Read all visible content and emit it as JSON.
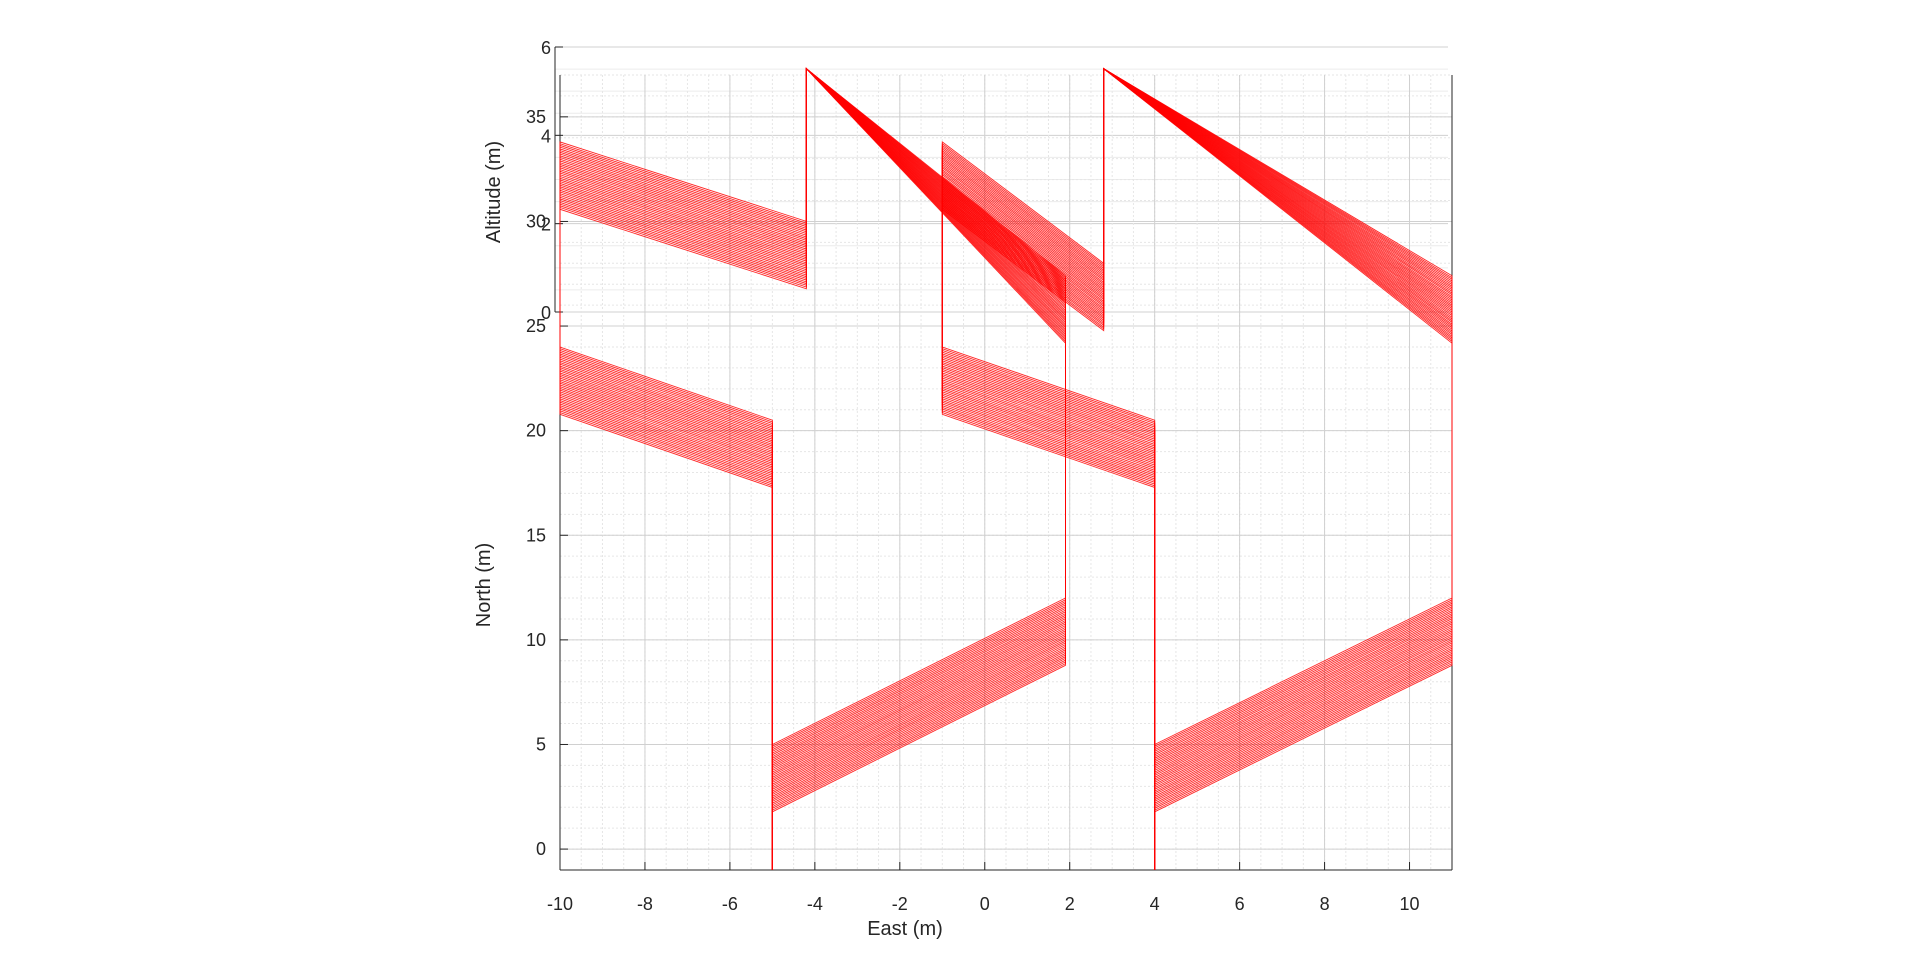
{
  "chart_data": {
    "type": "line",
    "projection": "3d",
    "title": "",
    "xlabel": "East (m)",
    "ylabel": "North (m)",
    "zlabel": "Altitude (m)",
    "xlim": [
      -10,
      11
    ],
    "ylim": [
      -1,
      37
    ],
    "zlim": [
      0,
      6
    ],
    "x_ticks": [
      "-10",
      "-8",
      "-6",
      "-4",
      "-2",
      "0",
      "2",
      "4",
      "6",
      "8",
      "10"
    ],
    "y_ticks": [
      "0",
      "5",
      "10",
      "15",
      "20",
      "25",
      "30",
      "35"
    ],
    "z_ticks": [
      "0",
      "2",
      "4",
      "6"
    ],
    "grid": true,
    "minor_grid": true,
    "legend": "none",
    "series_color": "#ff0000",
    "series": [
      {
        "sweeps": 40,
        "path": [
          [
            -5.0,
            -1.0,
            0.0
          ],
          [
            -5.0,
            5.0,
            0.0
          ],
          [
            -5.0,
            20.5,
            0.0
          ],
          [
            -10.0,
            24.0,
            0.0
          ],
          [
            -10.0,
            33.8,
            0.0
          ],
          [
            -4.2,
            30.0,
            0.0
          ],
          [
            -4.2,
            45.5,
            0.0
          ],
          [
            1.9,
            27.4,
            0.0
          ],
          [
            1.9,
            12.0,
            0.0
          ],
          [
            -5.0,
            5.0,
            0.0
          ]
        ]
      },
      {
        "sweeps": 40,
        "path": [
          [
            4.0,
            -1.0,
            0.0
          ],
          [
            4.0,
            5.0,
            0.0
          ],
          [
            4.0,
            20.5,
            0.0
          ],
          [
            -1.0,
            24.0,
            0.0
          ],
          [
            -1.0,
            33.8,
            0.0
          ],
          [
            2.8,
            28.0,
            0.0
          ],
          [
            2.8,
            45.5,
            0.0
          ],
          [
            11.0,
            27.4,
            0.0
          ],
          [
            11.0,
            12.0,
            0.0
          ],
          [
            4.0,
            5.0,
            0.0
          ]
        ]
      }
    ]
  }
}
